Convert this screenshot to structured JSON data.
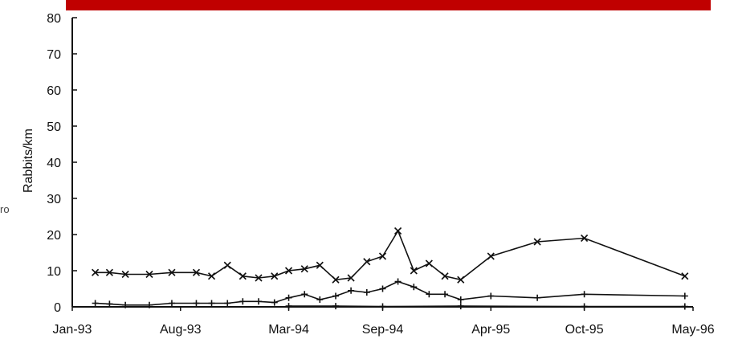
{
  "header": {
    "banner_color": "#c00000"
  },
  "edge_text": "ro",
  "chart_data": {
    "type": "line",
    "title": "",
    "xlabel": "",
    "ylabel": "Rabbits/km",
    "ylim": [
      0,
      80
    ],
    "yticks": [
      0,
      10,
      20,
      30,
      40,
      50,
      60,
      70,
      80
    ],
    "xlim": [
      "1993-01-01",
      "1996-05-01"
    ],
    "xticks": [
      {
        "date": "1993-01-01",
        "label": "Jan-93"
      },
      {
        "date": "1993-08-01",
        "label": "Aug-93"
      },
      {
        "date": "1994-03-01",
        "label": "Mar-94"
      },
      {
        "date": "1994-09-01",
        "label": "Sep-94"
      },
      {
        "date": "1995-04-01",
        "label": "Apr-95"
      },
      {
        "date": "1995-10-01",
        "label": "Oct-95"
      },
      {
        "date": "1996-05-01",
        "label": "May-96"
      }
    ],
    "grid": false,
    "series": [
      {
        "marker": "x",
        "color": "#111111",
        "points": [
          {
            "x": "1993-02-15",
            "y": 9.5
          },
          {
            "x": "1993-03-15",
            "y": 9.5
          },
          {
            "x": "1993-04-15",
            "y": 9
          },
          {
            "x": "1993-06-01",
            "y": 9
          },
          {
            "x": "1993-07-15",
            "y": 9.5
          },
          {
            "x": "1993-09-01",
            "y": 9.5
          },
          {
            "x": "1993-10-01",
            "y": 8.5
          },
          {
            "x": "1993-11-01",
            "y": 11.5
          },
          {
            "x": "1993-12-01",
            "y": 8.5
          },
          {
            "x": "1994-01-01",
            "y": 8
          },
          {
            "x": "1994-02-01",
            "y": 8.5
          },
          {
            "x": "1994-03-01",
            "y": 10
          },
          {
            "x": "1994-04-01",
            "y": 10.5
          },
          {
            "x": "1994-05-01",
            "y": 11.5
          },
          {
            "x": "1994-06-01",
            "y": 7.5
          },
          {
            "x": "1994-07-01",
            "y": 8
          },
          {
            "x": "1994-08-01",
            "y": 12.5
          },
          {
            "x": "1994-09-01",
            "y": 14
          },
          {
            "x": "1994-10-01",
            "y": 21
          },
          {
            "x": "1994-11-01",
            "y": 10
          },
          {
            "x": "1994-12-01",
            "y": 12
          },
          {
            "x": "1995-01-01",
            "y": 8.5
          },
          {
            "x": "1995-02-01",
            "y": 7.5
          },
          {
            "x": "1995-04-01",
            "y": 14
          },
          {
            "x": "1995-07-01",
            "y": 18
          },
          {
            "x": "1995-10-01",
            "y": 19
          },
          {
            "x": "1996-04-15",
            "y": 8.5
          }
        ]
      },
      {
        "marker": "+",
        "color": "#111111",
        "points": [
          {
            "x": "1993-02-15",
            "y": 1
          },
          {
            "x": "1993-03-15",
            "y": 0.8
          },
          {
            "x": "1993-04-15",
            "y": 0.5
          },
          {
            "x": "1993-06-01",
            "y": 0.5
          },
          {
            "x": "1993-07-15",
            "y": 1
          },
          {
            "x": "1993-09-01",
            "y": 1
          },
          {
            "x": "1993-10-01",
            "y": 1
          },
          {
            "x": "1993-11-01",
            "y": 1
          },
          {
            "x": "1993-12-01",
            "y": 1.5
          },
          {
            "x": "1994-01-01",
            "y": 1.5
          },
          {
            "x": "1994-02-01",
            "y": 1.2
          },
          {
            "x": "1994-03-01",
            "y": 2.5
          },
          {
            "x": "1994-04-01",
            "y": 3.5
          },
          {
            "x": "1994-05-01",
            "y": 2
          },
          {
            "x": "1994-06-01",
            "y": 3
          },
          {
            "x": "1994-07-01",
            "y": 4.5
          },
          {
            "x": "1994-08-01",
            "y": 4
          },
          {
            "x": "1994-09-01",
            "y": 5
          },
          {
            "x": "1994-10-01",
            "y": 7
          },
          {
            "x": "1994-11-01",
            "y": 5.5
          },
          {
            "x": "1994-12-01",
            "y": 3.5
          },
          {
            "x": "1995-01-01",
            "y": 3.5
          },
          {
            "x": "1995-02-01",
            "y": 2
          },
          {
            "x": "1995-04-01",
            "y": 3
          },
          {
            "x": "1995-07-01",
            "y": 2.5
          },
          {
            "x": "1995-10-01",
            "y": 3.5
          },
          {
            "x": "1996-04-15",
            "y": 3
          }
        ]
      },
      {
        "marker": "+",
        "color": "#111111",
        "points": [
          {
            "x": "1994-03-01",
            "y": 0.2
          },
          {
            "x": "1994-06-01",
            "y": 0.2
          },
          {
            "x": "1994-09-01",
            "y": 0.1
          },
          {
            "x": "1995-02-01",
            "y": 0.2
          },
          {
            "x": "1995-10-01",
            "y": 0.1
          },
          {
            "x": "1996-04-15",
            "y": 0.1
          }
        ]
      }
    ]
  }
}
